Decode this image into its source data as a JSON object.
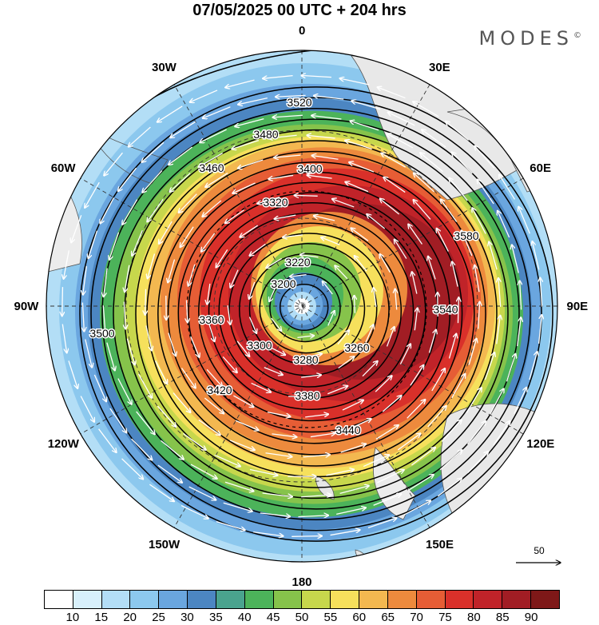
{
  "header": {
    "title": "07/05/2025  00 UTC  + 204 hrs",
    "brand": "MODES",
    "brand_mark": "©"
  },
  "map": {
    "projection": "polar stereographic",
    "longitude_labels": [
      "0",
      "30E",
      "60E",
      "90E",
      "120E",
      "150E",
      "180",
      "150W",
      "120W",
      "90W",
      "60W",
      "30W"
    ],
    "contour_labels": [
      "3520",
      "3480",
      "3400",
      "3460",
      "3320",
      "3220",
      "3200",
      "3280",
      "3300",
      "3360",
      "3260",
      "3380",
      "3420",
      "3440",
      "3500",
      "3540",
      "3580"
    ],
    "shading": "wind speed",
    "vectors": "wind direction"
  },
  "reference_vector": {
    "label": "50"
  },
  "colorbar": {
    "colors": [
      "#ffffff",
      "#d8f0fb",
      "#b3def6",
      "#8cc8ee",
      "#6aa6df",
      "#4c86c2",
      "#4aa38e",
      "#4cb35a",
      "#86c34b",
      "#c7d74c",
      "#f6e05c",
      "#f3b850",
      "#ed8a3d",
      "#e65d35",
      "#d9302a",
      "#c02329",
      "#a11d24",
      "#7e1818"
    ],
    "labels": [
      "10",
      "15",
      "20",
      "25",
      "30",
      "35",
      "40",
      "45",
      "50",
      "55",
      "60",
      "65",
      "70",
      "75",
      "80",
      "85",
      "90"
    ]
  }
}
